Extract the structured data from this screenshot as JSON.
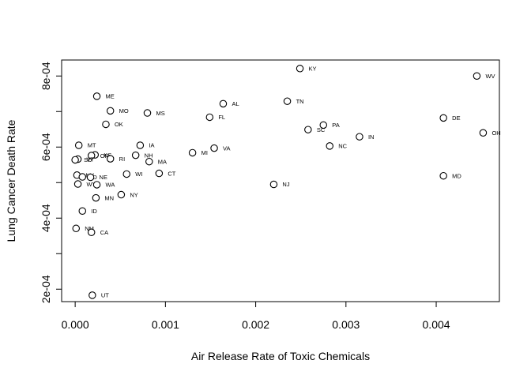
{
  "chart_data": {
    "type": "scatter",
    "title": "",
    "xlabel": "Air Release Rate of Toxic Chemicals",
    "ylabel": "Lung Cancer Death Rate",
    "xlim": [
      -0.00015,
      0.0047
    ],
    "ylim": [
      0.000165,
      0.000845
    ],
    "xticks": [
      {
        "value": 0.0,
        "label": "0.000"
      },
      {
        "value": 0.001,
        "label": "0.001"
      },
      {
        "value": 0.002,
        "label": "0.002"
      },
      {
        "value": 0.003,
        "label": "0.003"
      },
      {
        "value": 0.004,
        "label": "0.004"
      }
    ],
    "yticks": [
      {
        "value": 0.0002,
        "label": "2e-04"
      },
      {
        "value": 0.0003,
        "label": ""
      },
      {
        "value": 0.0004,
        "label": "4e-04"
      },
      {
        "value": 0.0005,
        "label": ""
      },
      {
        "value": 0.0006,
        "label": "6e-04"
      },
      {
        "value": 0.0007,
        "label": ""
      },
      {
        "value": 0.0008,
        "label": "8e-04"
      }
    ],
    "grid": false,
    "legend": "none",
    "points": [
      {
        "label": "KY",
        "x": 0.00249,
        "y": 0.000821
      },
      {
        "label": "WV",
        "x": 0.00445,
        "y": 0.0008
      },
      {
        "label": "ME",
        "x": 0.00024,
        "y": 0.000743
      },
      {
        "label": "TN",
        "x": 0.00235,
        "y": 0.000729
      },
      {
        "label": "AL",
        "x": 0.00164,
        "y": 0.000722
      },
      {
        "label": "MO",
        "x": 0.00039,
        "y": 0.000702
      },
      {
        "label": "MS",
        "x": 0.0008,
        "y": 0.000696
      },
      {
        "label": "FL",
        "x": 0.00149,
        "y": 0.000684
      },
      {
        "label": "DE",
        "x": 0.00408,
        "y": 0.000682
      },
      {
        "label": "OK",
        "x": 0.00034,
        "y": 0.000664
      },
      {
        "label": "PA",
        "x": 0.00275,
        "y": 0.000662
      },
      {
        "label": "SC",
        "x": 0.00258,
        "y": 0.000649
      },
      {
        "label": "OH",
        "x": 0.00452,
        "y": 0.00064
      },
      {
        "label": "IN",
        "x": 0.00315,
        "y": 0.000629
      },
      {
        "label": "MT",
        "x": 4e-05,
        "y": 0.000605
      },
      {
        "label": "IA",
        "x": 0.00072,
        "y": 0.000605
      },
      {
        "label": "NC",
        "x": 0.00282,
        "y": 0.000603
      },
      {
        "label": "VA",
        "x": 0.00154,
        "y": 0.000597
      },
      {
        "label": "MI",
        "x": 0.0013,
        "y": 0.000584
      },
      {
        "label": "KS",
        "x": 0.00022,
        "y": 0.000578
      },
      {
        "label": "OR",
        "x": 0.00018,
        "y": 0.000576
      },
      {
        "label": "NH",
        "x": 0.00067,
        "y": 0.000577
      },
      {
        "label": "VT",
        "x": 3e-05,
        "y": 0.000566
      },
      {
        "label": "SD",
        "x": 0.0,
        "y": 0.000564
      },
      {
        "label": "RI",
        "x": 0.00039,
        "y": 0.000567
      },
      {
        "label": "MA",
        "x": 0.00082,
        "y": 0.000559
      },
      {
        "label": "WI",
        "x": 0.00057,
        "y": 0.000524
      },
      {
        "label": "CT",
        "x": 0.00093,
        "y": 0.000526
      },
      {
        "label": "NV",
        "x": 2e-05,
        "y": 0.000521
      },
      {
        "label": "ID",
        "x": 8e-05,
        "y": 0.000516
      },
      {
        "label": "NE",
        "x": 0.00017,
        "y": 0.000515
      },
      {
        "label": "MD",
        "x": 0.00408,
        "y": 0.000519
      },
      {
        "label": "WY",
        "x": 3e-05,
        "y": 0.000496
      },
      {
        "label": "WA",
        "x": 0.00024,
        "y": 0.000494
      },
      {
        "label": "NJ",
        "x": 0.0022,
        "y": 0.000495
      },
      {
        "label": "NY",
        "x": 0.00051,
        "y": 0.000466
      },
      {
        "label": "MN",
        "x": 0.00023,
        "y": 0.000457
      },
      {
        "label": "ID",
        "x": 8e-05,
        "y": 0.00042
      },
      {
        "label": "NM",
        "x": 1e-05,
        "y": 0.000371
      },
      {
        "label": "CA",
        "x": 0.00018,
        "y": 0.00036
      },
      {
        "label": "UT",
        "x": 0.00019,
        "y": 0.000183
      }
    ]
  }
}
